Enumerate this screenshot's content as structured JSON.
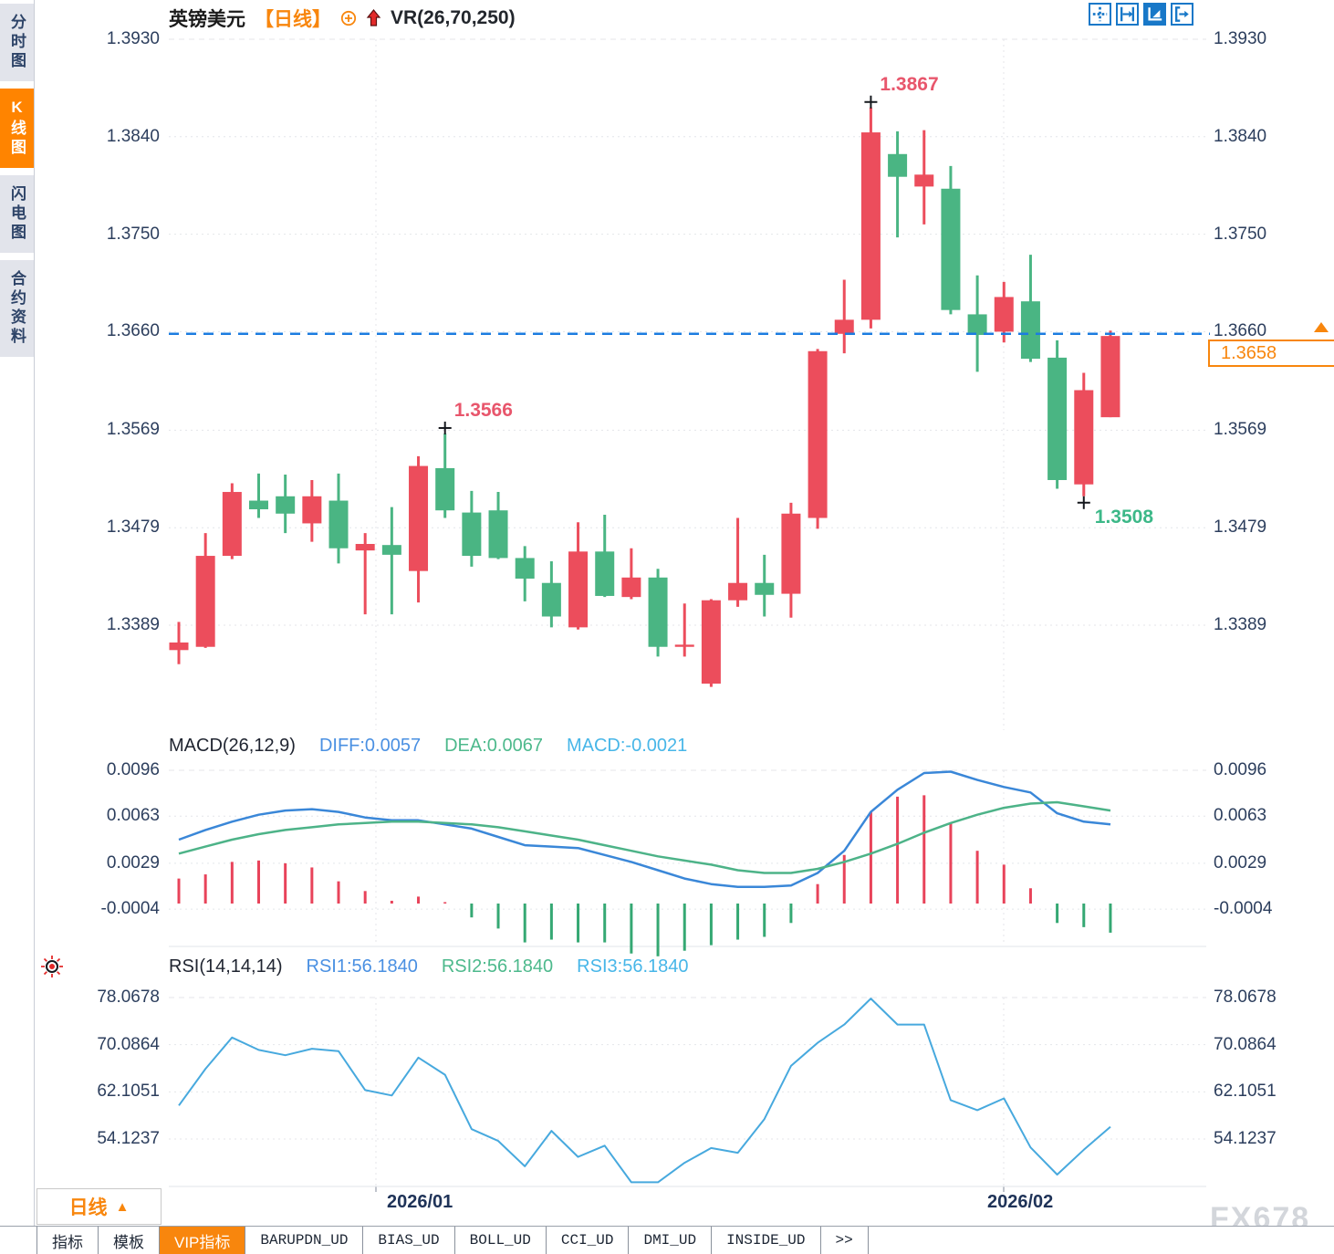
{
  "sidebar": {
    "tabs": [
      {
        "label": "分时图",
        "active": false
      },
      {
        "label": "K线图",
        "active": true
      },
      {
        "label": "闪电图",
        "active": false
      },
      {
        "label": "合约资料",
        "active": false
      }
    ]
  },
  "header": {
    "symbol": "英镑美元",
    "period_tag": "【日线】",
    "overlay_indicator": "VR(26,70,250)"
  },
  "price_scale": {
    "ticks": [
      "1.3930",
      "1.3840",
      "1.3750",
      "1.3660",
      "1.3569",
      "1.3479",
      "1.3389"
    ]
  },
  "current_price": {
    "value": "1.3658"
  },
  "annotations": {
    "high": "1.3867",
    "swing_high": "1.3566",
    "low": "1.3508"
  },
  "x_axis": {
    "labels": [
      "2026/01",
      "2026/02"
    ]
  },
  "macd_header": {
    "title": "MACD(26,12,9)",
    "diff_label": "DIFF:0.0057",
    "dea_label": "DEA:0.0067",
    "macd_label": "MACD:-0.0021"
  },
  "macd_scale": {
    "ticks": [
      "0.0096",
      "0.0063",
      "0.0029",
      "-0.0004"
    ]
  },
  "rsi_header": {
    "title": "RSI(14,14,14)",
    "rsi1_label": "RSI1:56.1840",
    "rsi2_label": "RSI2:56.1840",
    "rsi3_label": "RSI3:56.1840"
  },
  "rsi_scale": {
    "ticks": [
      "78.0678",
      "70.0864",
      "62.1051",
      "54.1237"
    ]
  },
  "period_selector": {
    "label": "日线",
    "arrow": "▲"
  },
  "bottom_tabs": {
    "items": [
      "指标",
      "模板",
      "VIP指标",
      "BARUPDN_UD",
      "BIAS_UD",
      "BOLL_UD",
      "CCI_UD",
      "DMI_UD",
      "INSIDE_UD",
      ">>"
    ],
    "active": "VIP指标"
  },
  "watermark": "FX678",
  "colors": {
    "up": "#ec4d5c",
    "down": "#4ab583",
    "hist_up": "#e8435a",
    "hist_down": "#35a873",
    "diff_line": "#3a87d8",
    "dea_line": "#4db388",
    "rsi_line": "#47a9de",
    "price_line": "#1b7ce0",
    "accent": "#f8860d",
    "grid": "#e4e6ea",
    "axis_text": "#2c3e5d",
    "cross": "#15181d"
  },
  "chart_data": [
    {
      "type": "candlestick",
      "title": "英镑美元 日线 (GBP/USD daily)",
      "yticks": [
        1.393,
        1.384,
        1.375,
        1.366,
        1.3569,
        1.3479,
        1.3389
      ],
      "ylim": [
        1.3332,
        1.393
      ],
      "x_labels": [
        "2026/01",
        "2026/02"
      ],
      "price_line": 1.3658,
      "candles": [
        [
          1.3366,
          1.3392,
          1.3353,
          1.3373
        ],
        [
          1.3369,
          1.3474,
          1.3368,
          1.3453
        ],
        [
          1.3453,
          1.352,
          1.345,
          1.3512
        ],
        [
          1.3504,
          1.3529,
          1.3488,
          1.3496
        ],
        [
          1.3508,
          1.3528,
          1.3474,
          1.3492
        ],
        [
          1.3483,
          1.3523,
          1.3466,
          1.3508
        ],
        [
          1.3504,
          1.3529,
          1.3446,
          1.346
        ],
        [
          1.3458,
          1.3474,
          1.3399,
          1.3464
        ],
        [
          1.3463,
          1.3498,
          1.3399,
          1.3454
        ],
        [
          1.3439,
          1.3545,
          1.341,
          1.3536
        ],
        [
          1.3534,
          1.3566,
          1.3488,
          1.3495
        ],
        [
          1.3493,
          1.3513,
          1.3443,
          1.3453
        ],
        [
          1.3495,
          1.3512,
          1.345,
          1.3451
        ],
        [
          1.3451,
          1.3462,
          1.3411,
          1.3432
        ],
        [
          1.3428,
          1.3448,
          1.3387,
          1.3397
        ],
        [
          1.3387,
          1.3484,
          1.3385,
          1.3457
        ],
        [
          1.3457,
          1.3491,
          1.3415,
          1.3416
        ],
        [
          1.3415,
          1.346,
          1.3413,
          1.3433
        ],
        [
          1.3433,
          1.3441,
          1.336,
          1.3369
        ],
        [
          1.3369,
          1.3409,
          1.336,
          1.3371
        ],
        [
          1.3335,
          1.3413,
          1.3332,
          1.3412
        ],
        [
          1.3412,
          1.3488,
          1.3406,
          1.3428
        ],
        [
          1.3428,
          1.3454,
          1.3397,
          1.3417
        ],
        [
          1.3418,
          1.3502,
          1.3396,
          1.3492
        ],
        [
          1.3488,
          1.3644,
          1.3478,
          1.3642
        ],
        [
          1.3658,
          1.3708,
          1.364,
          1.3671
        ],
        [
          1.3671,
          1.3867,
          1.3663,
          1.3844
        ],
        [
          1.3824,
          1.3845,
          1.3747,
          1.3803
        ],
        [
          1.3794,
          1.3846,
          1.3759,
          1.3805
        ],
        [
          1.3792,
          1.3813,
          1.3676,
          1.368
        ],
        [
          1.3676,
          1.3712,
          1.3623,
          1.3657
        ],
        [
          1.366,
          1.3706,
          1.365,
          1.3692
        ],
        [
          1.3688,
          1.3731,
          1.3632,
          1.3635
        ],
        [
          1.3636,
          1.3652,
          1.3515,
          1.3523
        ],
        [
          1.3519,
          1.3622,
          1.3508,
          1.3606
        ],
        [
          1.3581,
          1.3661,
          1.3581,
          1.3656
        ]
      ],
      "markers": [
        {
          "index": 10,
          "pos": "high",
          "label": "1.3566"
        },
        {
          "index": 26,
          "pos": "high",
          "label": "1.3867"
        },
        {
          "index": 34,
          "pos": "low",
          "label": "1.3508"
        }
      ]
    },
    {
      "type": "bar",
      "name": "MACD(26,12,9)",
      "yticks": [
        0.0096,
        0.0063,
        0.0029,
        -0.0004
      ],
      "hist": [
        0.0018,
        0.0021,
        0.003,
        0.0031,
        0.0029,
        0.0026,
        0.0016,
        0.0009,
        0.0002,
        0.0005,
        0.0001,
        -0.001,
        -0.0018,
        -0.0028,
        -0.0026,
        -0.0028,
        -0.0028,
        -0.0036,
        -0.0038,
        -0.0034,
        -0.003,
        -0.0026,
        -0.0024,
        -0.0014,
        0.0014,
        0.0035,
        0.0066,
        0.0077,
        0.0078,
        0.0058,
        0.0038,
        0.0028,
        0.0011,
        -0.0014,
        -0.0017,
        -0.0021
      ],
      "series": [
        {
          "name": "DIFF",
          "values": [
            0.0046,
            0.0053,
            0.0059,
            0.0064,
            0.0067,
            0.0068,
            0.0066,
            0.0062,
            0.006,
            0.006,
            0.0057,
            0.0054,
            0.0048,
            0.0042,
            0.0041,
            0.004,
            0.0035,
            0.003,
            0.0024,
            0.0018,
            0.0014,
            0.0012,
            0.0012,
            0.0013,
            0.0022,
            0.0038,
            0.0066,
            0.0082,
            0.0094,
            0.0095,
            0.0089,
            0.0084,
            0.008,
            0.0065,
            0.0059,
            0.0057
          ]
        },
        {
          "name": "DEA",
          "values": [
            0.0036,
            0.0041,
            0.0046,
            0.005,
            0.0053,
            0.0055,
            0.0057,
            0.0058,
            0.0059,
            0.0059,
            0.0058,
            0.0057,
            0.0055,
            0.0052,
            0.0049,
            0.0046,
            0.0042,
            0.0038,
            0.0034,
            0.0031,
            0.0028,
            0.0024,
            0.0022,
            0.0022,
            0.0025,
            0.003,
            0.0036,
            0.0043,
            0.0051,
            0.0058,
            0.0064,
            0.0069,
            0.0072,
            0.0073,
            0.007,
            0.0067
          ]
        }
      ],
      "last_values": {
        "DIFF": 0.0057,
        "DEA": 0.0067,
        "MACD": -0.0021
      }
    },
    {
      "type": "line",
      "name": "RSI(14,14,14)",
      "yticks": [
        78.0678,
        70.0864,
        62.1051,
        54.1237
      ],
      "values": [
        59.8,
        66.0,
        71.3,
        69.2,
        68.3,
        69.4,
        69.0,
        62.4,
        61.5,
        67.9,
        65.0,
        55.8,
        53.8,
        49.5,
        55.5,
        51.1,
        53.0,
        46.8,
        46.8,
        50.1,
        52.6,
        51.8,
        57.5,
        66.5,
        70.4,
        73.5,
        77.9,
        73.5,
        73.5,
        60.7,
        59.0,
        61.0,
        52.7,
        48.1,
        52.3,
        56.2
      ],
      "last_values": {
        "RSI1": 56.184,
        "RSI2": 56.184,
        "RSI3": 56.184
      }
    }
  ]
}
